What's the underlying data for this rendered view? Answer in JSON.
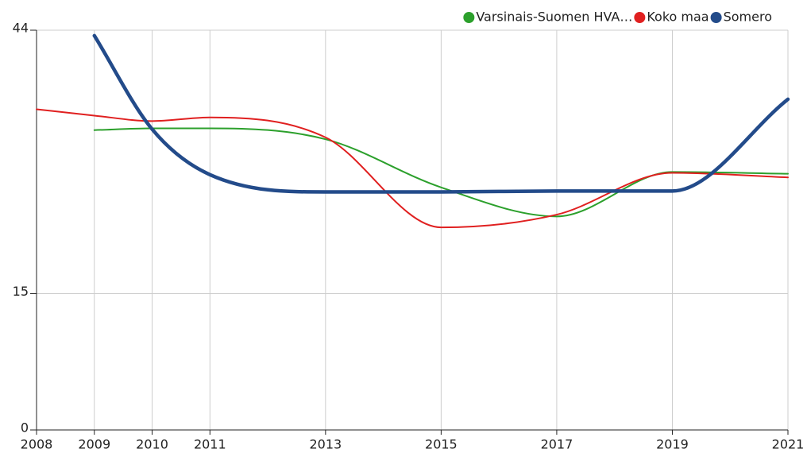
{
  "chart_data": {
    "type": "line",
    "x": [
      2008,
      2009,
      2010,
      2011,
      2013,
      2015,
      2017,
      2019,
      2021
    ],
    "series": [
      {
        "name": "Varsinais-Suomen HVA…",
        "color": "#2ca02c",
        "width": 2,
        "values": [
          null,
          33.0,
          33.2,
          33.2,
          32.0,
          26.7,
          23.5,
          28.4,
          28.2
        ]
      },
      {
        "name": "Koko maa",
        "color": "#e02020",
        "width": 2,
        "values": [
          35.3,
          34.6,
          34.0,
          34.4,
          32.2,
          22.3,
          23.7,
          28.3,
          27.8
        ]
      },
      {
        "name": "Somero",
        "color": "#234b8a",
        "width": 4.5,
        "values": [
          null,
          43.4,
          33.1,
          28.1,
          26.2,
          26.2,
          26.3,
          26.3,
          36.4
        ]
      }
    ],
    "xlim": [
      2008,
      2021
    ],
    "xticks": [
      2008,
      2009,
      2010,
      2011,
      2013,
      2015,
      2017,
      2019,
      2021
    ],
    "ylim": [
      0,
      44
    ],
    "yticks": [
      0,
      15,
      44
    ],
    "grid": true,
    "legend": "top-right"
  }
}
